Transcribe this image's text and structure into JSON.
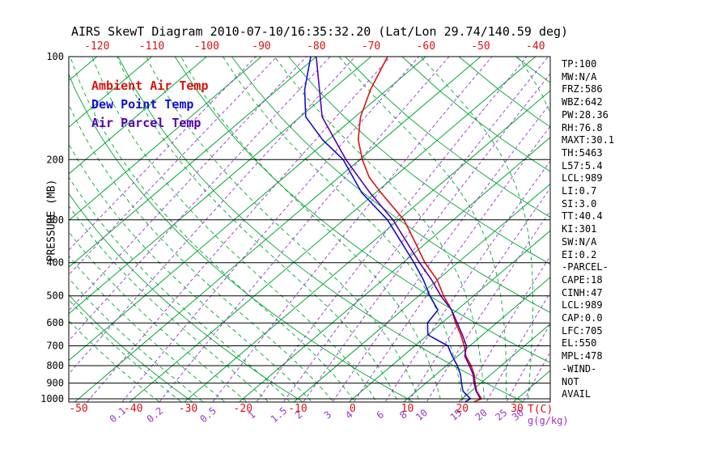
{
  "page": {
    "title": "AIRS SkewT Diagram 2010-07-10/16:35:32.20 (Lat/Lon 29.74/140.59 deg)"
  },
  "legend": {
    "ambient_label": "Ambient Air Temp",
    "dew_label": "Dew Point Temp",
    "parcel_label": "Air Parcel Temp"
  },
  "axes": {
    "pressure_axis_label": "PRESSURE (MB)",
    "pressure_ticks": [
      100,
      200,
      300,
      400,
      500,
      600,
      700,
      800,
      900,
      1000
    ],
    "top_temp_ticks": [
      -120,
      -110,
      -100,
      -90,
      -80,
      -70,
      -60,
      -50,
      -40
    ],
    "bottom_temp_ticks": [
      -50,
      -40,
      -30,
      -20,
      -10,
      0,
      10,
      20,
      30
    ],
    "temp_unit_label": "T(C)",
    "mixing_ratio_values": [
      0.1,
      0.2,
      0.5,
      1,
      1.5,
      2,
      3,
      4,
      6,
      8,
      10,
      15,
      20,
      25,
      30
    ],
    "mixing_unit_label": "g(g/kg)"
  },
  "stats": [
    "TP:100",
    "MW:N/A",
    "FRZ:586",
    "WBZ:642",
    "PW:28.36",
    "RH:76.8",
    "MAXT:30.1",
    "TH:5463",
    "L57:5.4",
    "LCL:989",
    "LI:0.7",
    "SI:3.0",
    "TT:40.4",
    "KI:301",
    "SW:N/A",
    "EI:0.2",
    "-PARCEL-",
    "CAPE:18",
    "CINH:47",
    "LCL:989",
    "CAP:0.0",
    "LFC:705",
    "EL:550",
    "MPL:478",
    "-WIND-",
    "NOT",
    "AVAIL"
  ],
  "colors": {
    "isotherm": "#00a832",
    "moist_adiabat": "#00a832",
    "mixing_ratio": "#9933cc",
    "axis": "#000000",
    "red_label": "#dd1111",
    "ambient": "#dd1111",
    "dew_point": "#1111cc",
    "parcel": "#5500b0"
  },
  "chart_data": {
    "type": "line",
    "title": "AIRS SkewT Diagram 2010-07-10/16:35:32.20 (Lat/Lon 29.74/140.59 deg)",
    "x_axis_label": "T(C)",
    "y_axis_label": "PRESSURE (MB)",
    "y_scale": "log",
    "y_range": [
      100,
      1050
    ],
    "surface_temp_axis_range": [
      -50,
      40
    ],
    "top_temp_axis_range": [
      -120,
      -40
    ],
    "skew": "isotherms slope up-to-the-right; green solid = isotherms/dry adiabats, green dashed = moist adiabats, violet dashed = mixing ratio lines",
    "legend_position": "top-left inside plot",
    "series": [
      {
        "name": "Ambient Air Temp",
        "color": "#dd1111",
        "points": [
          [
            100,
            -67
          ],
          [
            125,
            -63
          ],
          [
            150,
            -59
          ],
          [
            175,
            -54.5
          ],
          [
            200,
            -49.5
          ],
          [
            225,
            -44.5
          ],
          [
            250,
            -39
          ],
          [
            300,
            -29
          ],
          [
            350,
            -22
          ],
          [
            400,
            -16
          ],
          [
            450,
            -10
          ],
          [
            500,
            -5.5
          ],
          [
            550,
            -1
          ],
          [
            600,
            2.5
          ],
          [
            650,
            6
          ],
          [
            700,
            9
          ],
          [
            750,
            11.5
          ],
          [
            800,
            14.5
          ],
          [
            850,
            17
          ],
          [
            900,
            19
          ],
          [
            950,
            21
          ],
          [
            1000,
            23.5
          ],
          [
            1020,
            22.8
          ]
        ]
      },
      {
        "name": "Dew Point Temp",
        "color": "#1111cc",
        "points": [
          [
            100,
            -81
          ],
          [
            125,
            -75
          ],
          [
            150,
            -69
          ],
          [
            175,
            -61
          ],
          [
            200,
            -53
          ],
          [
            250,
            -42.5
          ],
          [
            300,
            -32
          ],
          [
            350,
            -24.5
          ],
          [
            400,
            -18
          ],
          [
            450,
            -12.5
          ],
          [
            500,
            -8
          ],
          [
            550,
            -3.5
          ],
          [
            600,
            -2.6
          ],
          [
            650,
            0
          ],
          [
            700,
            6
          ],
          [
            750,
            9
          ],
          [
            800,
            12
          ],
          [
            850,
            14.5
          ],
          [
            900,
            16.5
          ],
          [
            950,
            18.5
          ],
          [
            1000,
            21.5
          ],
          [
            1020,
            21.2
          ]
        ]
      },
      {
        "name": "Air Parcel Temp",
        "color": "#5500b0",
        "points": [
          [
            100,
            -80
          ],
          [
            150,
            -66
          ],
          [
            200,
            -52.5
          ],
          [
            250,
            -41
          ],
          [
            300,
            -31
          ],
          [
            350,
            -23.5
          ],
          [
            400,
            -17
          ],
          [
            450,
            -11
          ],
          [
            500,
            -6
          ],
          [
            550,
            -1
          ],
          [
            600,
            2.8
          ],
          [
            650,
            6.3
          ],
          [
            700,
            9.4
          ],
          [
            750,
            11.3
          ],
          [
            800,
            14.2
          ],
          [
            850,
            16.8
          ],
          [
            900,
            18.8
          ],
          [
            950,
            20.9
          ],
          [
            1000,
            23.3
          ]
        ]
      }
    ]
  }
}
